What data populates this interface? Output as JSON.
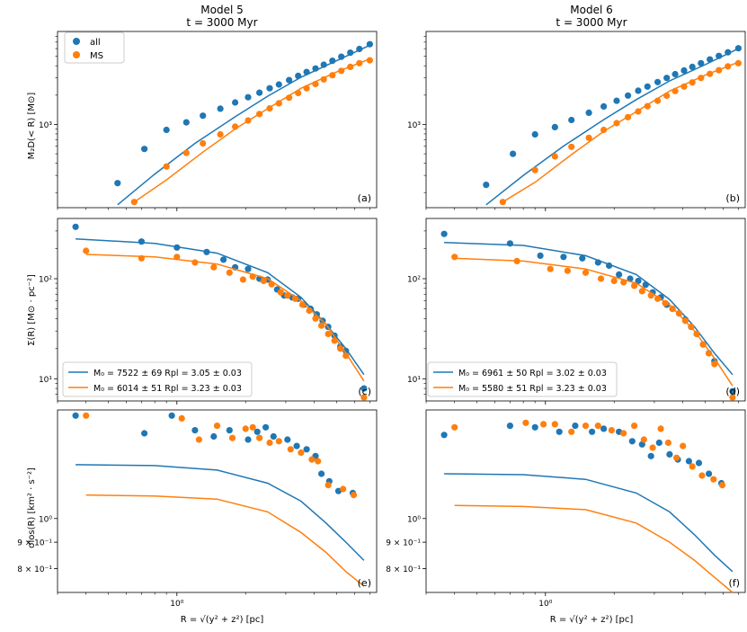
{
  "colors": {
    "all": "#1f77b4",
    "ms": "#ff7f0e"
  },
  "columns": [
    {
      "title": "Model 5",
      "subtitle": "t = 3000 Myr"
    },
    {
      "title": "Model 6",
      "subtitle": "t = 3000 Myr"
    }
  ],
  "legend_top": {
    "all": "all",
    "ms": "MS"
  },
  "xlabel": "R = √(y² + z²) [pc]",
  "ylabels": {
    "mass": "M₂D(< R) [M⊙]",
    "sigma": "Σ(R) [M⊙ · pc⁻²]",
    "disp": "σlos(R) [km² · s⁻²]"
  },
  "panel_tags": [
    "(a)",
    "(b)",
    "(c)",
    "(d)",
    "(e)",
    "(f)"
  ],
  "fit_legends": [
    {
      "all": "M₀ = 7522 ± 69    Rpl = 3.05 ± 0.03",
      "ms": "M₀ = 6014 ± 51    Rpl = 3.23 ± 0.03"
    },
    {
      "all": "M₀ = 6961 ± 50    Rpl = 3.02 ± 0.03",
      "ms": "M₀ = 5580 ± 51    Rpl = 3.23 ± 0.03"
    }
  ],
  "chart_data": [
    {
      "panel": "a",
      "type": "scatter",
      "title": "Model 5",
      "subtitle": "t = 3000 Myr",
      "yscale": "log",
      "xscale": "log",
      "xlim": [
        0.3,
        7.5
      ],
      "ylim": [
        140,
        9000
      ],
      "yticks": [
        {
          "v": 1000,
          "label": "10³"
        }
      ],
      "xticks": [],
      "series": [
        {
          "name": "all",
          "x": [
            0.55,
            0.72,
            0.9,
            1.1,
            1.3,
            1.55,
            1.8,
            2.05,
            2.3,
            2.55,
            2.8,
            3.1,
            3.4,
            3.7,
            4.05,
            4.4,
            4.8,
            5.25,
            5.75,
            6.3,
            7.0
          ],
          "y": [
            250,
            560,
            880,
            1050,
            1230,
            1450,
            1680,
            1900,
            2120,
            2350,
            2570,
            2850,
            3150,
            3450,
            3750,
            4100,
            4500,
            4950,
            5450,
            5950,
            6650
          ],
          "fit_x": [
            0.55,
            0.8,
            1.2,
            1.8,
            2.5,
            3.5,
            5.0,
            7.0
          ],
          "fit_y": [
            150,
            310,
            640,
            1200,
            1950,
            3050,
            4500,
            6500
          ]
        },
        {
          "name": "MS",
          "x": [
            0.65,
            0.9,
            1.1,
            1.3,
            1.55,
            1.8,
            2.05,
            2.3,
            2.55,
            2.8,
            3.1,
            3.4,
            3.7,
            4.05,
            4.4,
            4.8,
            5.25,
            5.75,
            6.3,
            7.0
          ],
          "y": [
            160,
            370,
            510,
            640,
            790,
            950,
            1100,
            1280,
            1460,
            1650,
            1880,
            2100,
            2350,
            2600,
            2900,
            3200,
            3550,
            3900,
            4250,
            4550
          ],
          "fit_x": [
            0.65,
            0.9,
            1.3,
            1.8,
            2.5,
            3.5,
            5.0,
            7.0
          ],
          "fit_y": [
            160,
            270,
            520,
            900,
            1450,
            2350,
            3450,
            4700
          ]
        }
      ]
    },
    {
      "panel": "b",
      "type": "scatter",
      "title": "Model 6",
      "subtitle": "t = 3000 Myr",
      "yscale": "log",
      "xscale": "log",
      "xlim": [
        0.3,
        7.5
      ],
      "ylim": [
        140,
        9000
      ],
      "yticks": [
        {
          "v": 1000,
          "label": "10³"
        }
      ],
      "xticks": [],
      "series": [
        {
          "name": "all",
          "x": [
            0.55,
            0.72,
            0.9,
            1.1,
            1.3,
            1.55,
            1.8,
            2.05,
            2.3,
            2.55,
            2.8,
            3.1,
            3.4,
            3.7,
            4.05,
            4.4,
            4.8,
            5.25,
            5.75,
            6.3,
            7.0
          ],
          "y": [
            240,
            500,
            790,
            940,
            1110,
            1320,
            1530,
            1750,
            1980,
            2220,
            2450,
            2720,
            3000,
            3280,
            3580,
            3900,
            4250,
            4650,
            5050,
            5500,
            6050
          ],
          "fit_x": [
            0.55,
            0.8,
            1.2,
            1.8,
            2.5,
            3.5,
            5.0,
            7.0
          ],
          "fit_y": [
            150,
            300,
            600,
            1120,
            1800,
            2800,
            4100,
            6000
          ]
        },
        {
          "name": "MS",
          "x": [
            0.65,
            0.9,
            1.1,
            1.3,
            1.55,
            1.8,
            2.05,
            2.3,
            2.55,
            2.8,
            3.1,
            3.4,
            3.7,
            4.05,
            4.4,
            4.8,
            5.25,
            5.75,
            6.3,
            7.0
          ],
          "y": [
            160,
            340,
            470,
            590,
            730,
            880,
            1030,
            1190,
            1360,
            1540,
            1750,
            1970,
            2200,
            2450,
            2700,
            3000,
            3300,
            3600,
            3950,
            4250
          ],
          "fit_x": [
            0.65,
            0.9,
            1.3,
            1.8,
            2.5,
            3.5,
            5.0,
            7.0
          ],
          "fit_y": [
            160,
            255,
            490,
            850,
            1350,
            2200,
            3200,
            4350
          ]
        }
      ]
    },
    {
      "panel": "c",
      "type": "scatter",
      "yscale": "log",
      "xscale": "log",
      "xlim": [
        0.3,
        7.5
      ],
      "ylim": [
        6,
        400
      ],
      "yticks": [
        {
          "v": 100,
          "label": "10²"
        },
        {
          "v": 10,
          "label": "10¹"
        }
      ],
      "xticks": [],
      "series": [
        {
          "name": "all",
          "x": [
            0.36,
            0.7,
            1.0,
            1.35,
            1.6,
            1.8,
            2.05,
            2.3,
            2.5,
            2.75,
            2.95,
            3.2,
            3.4,
            3.6,
            3.85,
            4.1,
            4.35,
            4.6,
            4.9,
            5.2,
            5.5,
            6.6
          ],
          "y": [
            330,
            235,
            205,
            185,
            155,
            130,
            125,
            100,
            98,
            78,
            68,
            65,
            63,
            55,
            50,
            44,
            38,
            33,
            27,
            21,
            19,
            8
          ],
          "fit_x": [
            0.36,
            0.8,
            1.5,
            2.5,
            3.5,
            4.5,
            5.5,
            6.6
          ],
          "fit_y": [
            250,
            225,
            180,
            115,
            65,
            35,
            20,
            11
          ]
        },
        {
          "name": "MS",
          "x": [
            0.4,
            0.7,
            1.0,
            1.2,
            1.45,
            1.7,
            1.95,
            2.15,
            2.4,
            2.6,
            2.85,
            3.05,
            3.3,
            3.55,
            3.8,
            4.05,
            4.3,
            4.6,
            4.9,
            5.2,
            5.5,
            6.6
          ],
          "y": [
            190,
            160,
            165,
            145,
            130,
            115,
            98,
            105,
            95,
            88,
            73,
            68,
            63,
            55,
            48,
            40,
            34,
            28,
            24,
            20,
            17,
            6.5
          ],
          "fit_x": [
            0.4,
            0.8,
            1.5,
            2.5,
            3.5,
            4.5,
            5.5,
            6.6
          ],
          "fit_y": [
            175,
            165,
            140,
            100,
            60,
            35,
            18,
            9.5
          ]
        }
      ]
    },
    {
      "panel": "d",
      "type": "scatter",
      "yscale": "log",
      "xscale": "log",
      "xlim": [
        0.3,
        7.5
      ],
      "ylim": [
        6,
        400
      ],
      "yticks": [
        {
          "v": 100,
          "label": "10²"
        },
        {
          "v": 10,
          "label": "10¹"
        }
      ],
      "xticks": [],
      "series": [
        {
          "name": "all",
          "x": [
            0.36,
            0.7,
            0.95,
            1.2,
            1.45,
            1.7,
            1.9,
            2.1,
            2.35,
            2.55,
            2.75,
            2.95,
            3.2,
            3.4,
            3.6,
            3.85,
            4.1,
            4.35,
            4.6,
            4.9,
            5.2,
            5.5,
            6.6
          ],
          "y": [
            280,
            225,
            170,
            165,
            160,
            145,
            135,
            110,
            100,
            95,
            87,
            73,
            65,
            55,
            50,
            45,
            39,
            33,
            28,
            22,
            18,
            15,
            7.5
          ],
          "fit_x": [
            0.36,
            0.8,
            1.5,
            2.5,
            3.5,
            4.5,
            5.5,
            6.6
          ],
          "fit_y": [
            230,
            215,
            170,
            110,
            62,
            33,
            18,
            11
          ]
        },
        {
          "name": "MS",
          "x": [
            0.4,
            0.75,
            1.05,
            1.25,
            1.5,
            1.75,
            2.0,
            2.2,
            2.45,
            2.65,
            2.9,
            3.1,
            3.35,
            3.6,
            3.85,
            4.1,
            4.35,
            4.6,
            4.9,
            5.2,
            5.5,
            6.6
          ],
          "y": [
            165,
            150,
            125,
            120,
            115,
            100,
            95,
            92,
            85,
            75,
            68,
            63,
            57,
            50,
            45,
            38,
            33,
            28,
            22,
            18,
            14,
            6.5
          ],
          "fit_x": [
            0.4,
            0.8,
            1.5,
            2.5,
            3.5,
            4.5,
            5.5,
            6.6
          ],
          "fit_y": [
            160,
            150,
            125,
            90,
            55,
            30,
            16,
            8.5
          ]
        }
      ]
    },
    {
      "panel": "e",
      "type": "scatter",
      "xlabel": "R = √(y² + z²) [pc]",
      "yscale": "log",
      "xscale": "log",
      "xlim": [
        0.3,
        7.5
      ],
      "ylim": [
        0.72,
        1.62
      ],
      "yticks": [
        {
          "v": 1.0,
          "label": "10⁰"
        },
        {
          "v": 0.9,
          "label": "9 × 10⁻¹"
        },
        {
          "v": 0.8,
          "label": "8 × 10⁻¹"
        }
      ],
      "xticks": [
        {
          "v": 1.0,
          "label": "10⁰"
        }
      ],
      "series": [
        {
          "name": "all",
          "x": [
            0.36,
            0.72,
            0.95,
            1.2,
            1.45,
            1.7,
            2.05,
            2.25,
            2.45,
            2.65,
            3.05,
            3.35,
            3.7,
            4.05,
            4.3,
            4.65,
            5.1,
            5.9
          ],
          "y": [
            1.58,
            1.46,
            1.58,
            1.48,
            1.44,
            1.48,
            1.42,
            1.47,
            1.5,
            1.44,
            1.42,
            1.38,
            1.36,
            1.32,
            1.22,
            1.18,
            1.13,
            1.12
          ],
          "fit_x": [
            0.36,
            0.8,
            1.5,
            2.5,
            3.5,
            4.5,
            5.5,
            6.6
          ],
          "fit_y": [
            1.27,
            1.265,
            1.24,
            1.17,
            1.08,
            0.98,
            0.9,
            0.83
          ]
        },
        {
          "name": "MS",
          "x": [
            0.4,
            1.05,
            1.25,
            1.5,
            1.75,
            2.0,
            2.15,
            2.3,
            2.55,
            2.8,
            3.15,
            3.5,
            3.9,
            4.15,
            4.6,
            5.35,
            5.95
          ],
          "y": [
            1.58,
            1.56,
            1.42,
            1.51,
            1.43,
            1.49,
            1.5,
            1.43,
            1.4,
            1.41,
            1.36,
            1.34,
            1.3,
            1.29,
            1.16,
            1.14,
            1.11
          ],
          "fit_x": [
            0.4,
            0.8,
            1.5,
            2.5,
            3.5,
            4.5,
            5.5,
            6.6
          ],
          "fit_y": [
            1.11,
            1.105,
            1.09,
            1.03,
            0.94,
            0.86,
            0.79,
            0.74
          ]
        }
      ]
    },
    {
      "panel": "f",
      "type": "scatter",
      "xlabel": "R = √(y² + z²) [pc]",
      "yscale": "log",
      "xscale": "log",
      "xlim": [
        0.3,
        7.5
      ],
      "ylim": [
        0.72,
        1.62
      ],
      "yticks": [
        {
          "v": 1.0,
          "label": "10⁰"
        },
        {
          "v": 0.9,
          "label": "9 × 10⁻¹"
        },
        {
          "v": 0.8,
          "label": "8 × 10⁻¹"
        }
      ],
      "xticks": [
        {
          "v": 1.0,
          "label": "10⁰"
        }
      ],
      "series": [
        {
          "name": "all",
          "x": [
            0.36,
            0.7,
            0.9,
            1.15,
            1.35,
            1.6,
            1.8,
            2.1,
            2.4,
            2.65,
            2.9,
            3.15,
            3.5,
            3.8,
            4.25,
            4.7,
            5.2,
            5.9
          ],
          "y": [
            1.45,
            1.51,
            1.5,
            1.47,
            1.51,
            1.47,
            1.49,
            1.47,
            1.41,
            1.39,
            1.32,
            1.4,
            1.33,
            1.3,
            1.29,
            1.28,
            1.22,
            1.17
          ],
          "fit_x": [
            0.36,
            0.8,
            1.5,
            2.5,
            3.5,
            4.5,
            5.5,
            6.6
          ],
          "fit_y": [
            1.22,
            1.215,
            1.19,
            1.12,
            1.03,
            0.93,
            0.85,
            0.79
          ]
        },
        {
          "name": "MS",
          "x": [
            0.4,
            0.82,
            0.98,
            1.1,
            1.3,
            1.5,
            1.7,
            1.95,
            2.2,
            2.45,
            2.7,
            2.95,
            3.2,
            3.45,
            3.75,
            4.0,
            4.4,
            4.85,
            5.45,
            5.95
          ],
          "y": [
            1.5,
            1.53,
            1.52,
            1.52,
            1.47,
            1.51,
            1.51,
            1.48,
            1.46,
            1.51,
            1.42,
            1.37,
            1.49,
            1.4,
            1.31,
            1.38,
            1.26,
            1.21,
            1.19,
            1.16
          ],
          "fit_x": [
            0.4,
            0.8,
            1.5,
            2.5,
            3.5,
            4.5,
            5.5,
            6.6
          ],
          "fit_y": [
            1.06,
            1.055,
            1.04,
            0.98,
            0.9,
            0.83,
            0.77,
            0.72
          ]
        }
      ]
    }
  ]
}
